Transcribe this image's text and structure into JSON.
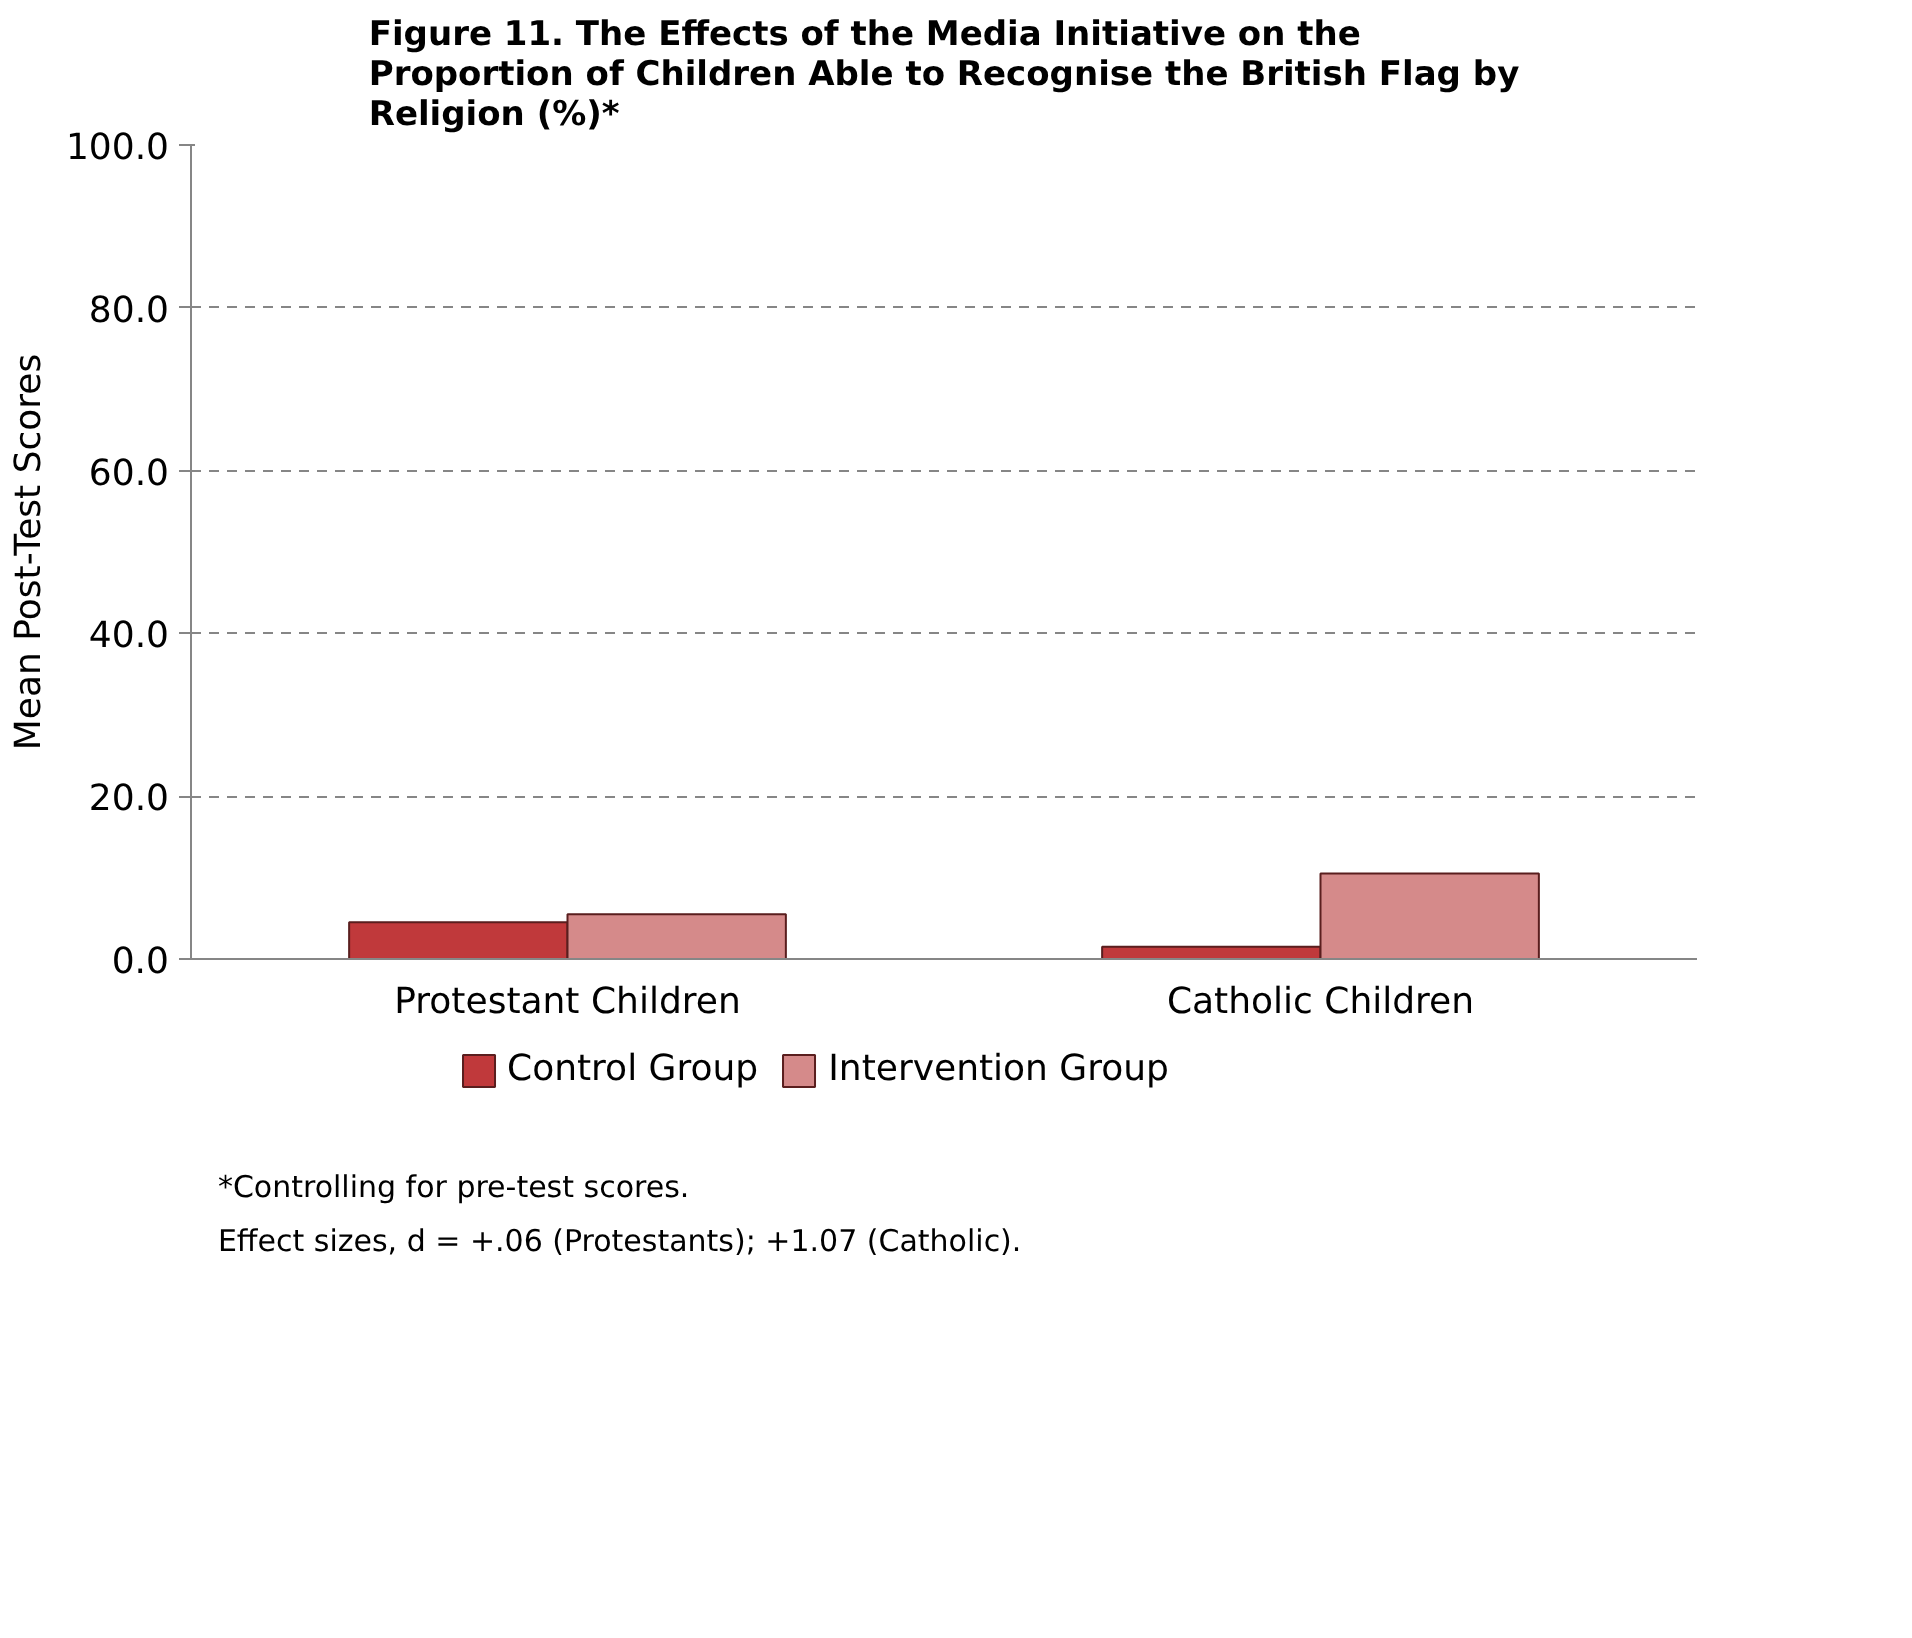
{
  "chart_data": {
    "type": "bar",
    "title": "Figure 11. The Effects of the Media Initiative on the Proportion of Children Able to Recognise the British Flag by Religion (%)*",
    "ylabel": "Mean Post-Test Scores",
    "categories": [
      "Protestant Children",
      "Catholic Children"
    ],
    "series": [
      {
        "name": "Control Group",
        "color": "#c0393b",
        "values": [
          4.5,
          1.5
        ]
      },
      {
        "name": "Intervention Group",
        "color": "#d58a8a",
        "values": [
          5.5,
          10.5
        ]
      }
    ],
    "ylim": [
      0,
      100
    ],
    "yticks": [
      {
        "value": 0,
        "label": "0.0"
      },
      {
        "value": 20,
        "label": "20.0"
      },
      {
        "value": 40,
        "label": "40.0"
      },
      {
        "value": 60,
        "label": "60.0"
      },
      {
        "value": 80,
        "label": "80.0"
      },
      {
        "value": 100,
        "label": "100.0"
      }
    ],
    "grid": "y",
    "legend": "bottom",
    "annotations": [
      "*Controlling for pre-test scores.",
      "Effect sizes, d = +.06 (Protestants); +1.07 (Catholic)."
    ]
  }
}
